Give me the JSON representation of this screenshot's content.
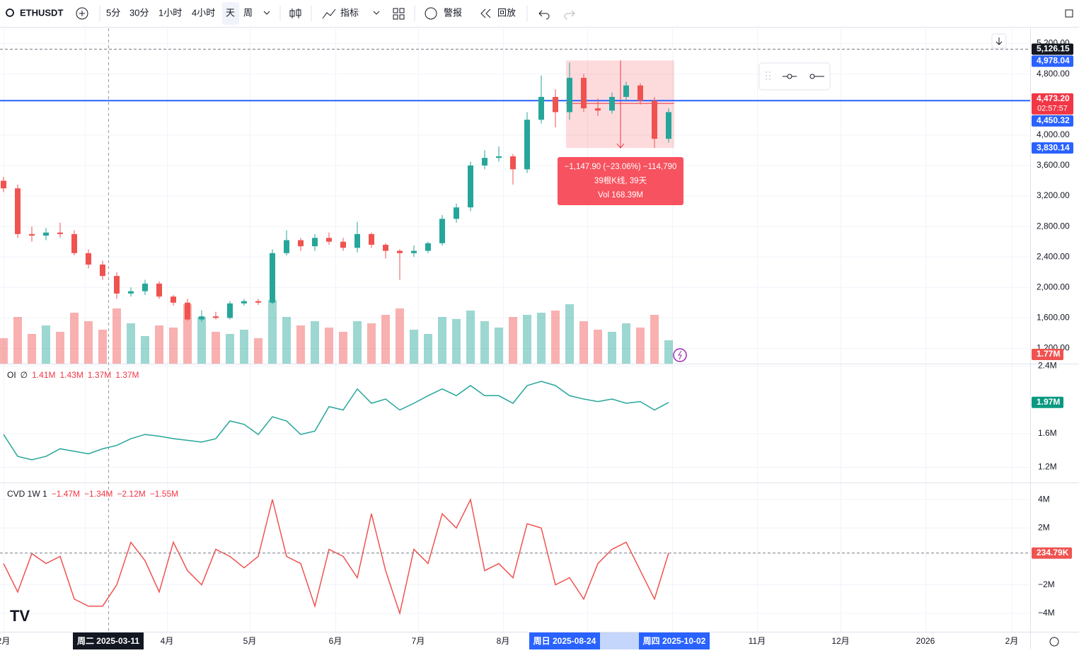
{
  "toolbar": {
    "symbol": "ETHUSDT",
    "intervals": [
      "5分",
      "30分",
      "1小时",
      "4小时",
      "天",
      "周"
    ],
    "active_interval": "天",
    "buttons": [
      "指标",
      "警报",
      "回放"
    ]
  },
  "chart_data": [
    {
      "type": "candlestick",
      "name": "price",
      "open": [
        3400,
        3300,
        2700,
        2680,
        2720,
        2700,
        2450,
        2300,
        2150,
        1920,
        1950,
        2050,
        1880,
        1800,
        1580,
        1620,
        1600,
        1790,
        1820,
        1800,
        2450,
        2620,
        2540,
        2650,
        2600,
        2520,
        2700,
        2560,
        2480,
        2450,
        2480,
        2580,
        2900,
        3050,
        3600,
        3700,
        3720,
        3550,
        4200,
        4500,
        4300,
        4750,
        4350,
        4320,
        4500,
        4650,
        4450,
        3950
      ],
      "high": [
        3450,
        3350,
        2800,
        2780,
        2850,
        2750,
        2500,
        2350,
        2200,
        2000,
        2100,
        2080,
        1900,
        1850,
        1700,
        1680,
        1820,
        1850,
        1850,
        2500,
        2750,
        2650,
        2700,
        2720,
        2650,
        2860,
        2720,
        2580,
        2500,
        2550,
        2600,
        2950,
        3100,
        3650,
        3800,
        3850,
        3750,
        4300,
        4780,
        4600,
        4950,
        4800,
        4480,
        4560,
        4700,
        4680,
        4500,
        4350
      ],
      "low": [
        3250,
        2650,
        2600,
        2620,
        2650,
        2420,
        2250,
        2100,
        1850,
        1880,
        1900,
        1850,
        1760,
        1560,
        1550,
        1580,
        1580,
        1760,
        1770,
        1780,
        2420,
        2480,
        2480,
        2560,
        2480,
        2460,
        2520,
        2380,
        2100,
        2400,
        2450,
        2550,
        2850,
        3000,
        3550,
        3650,
        3350,
        3500,
        4150,
        4100,
        4200,
        4300,
        4250,
        4280,
        4450,
        4400,
        3830,
        3900
      ],
      "close": [
        3300,
        2700,
        2680,
        2720,
        2700,
        2450,
        2300,
        2150,
        1920,
        1950,
        2050,
        1880,
        1800,
        1580,
        1620,
        1600,
        1790,
        1820,
        1800,
        2450,
        2620,
        2540,
        2650,
        2600,
        2520,
        2700,
        2560,
        2480,
        2450,
        2480,
        2580,
        2900,
        3050,
        3600,
        3700,
        3720,
        3550,
        4200,
        4500,
        4300,
        4750,
        4350,
        4320,
        4500,
        4650,
        4450,
        3950,
        4300
      ],
      "volume": [
        1.2,
        2.2,
        1.4,
        1.8,
        1.5,
        2.4,
        2.0,
        1.6,
        2.6,
        1.9,
        1.3,
        1.8,
        1.7,
        2.8,
        2.2,
        1.5,
        1.4,
        1.6,
        1.2,
        3.0,
        2.2,
        1.8,
        2.0,
        1.7,
        1.5,
        2.0,
        1.9,
        2.3,
        2.6,
        1.6,
        1.4,
        2.2,
        2.1,
        2.5,
        2.0,
        1.7,
        2.2,
        2.3,
        2.4,
        2.5,
        2.8,
        2.0,
        1.6,
        1.5,
        1.9,
        1.7,
        2.3,
        1.1
      ],
      "volume_label": "1.77M",
      "up_color": "#26a69a",
      "down_color": "#ef5350",
      "ylim": [
        1000,
        5400
      ],
      "yticks": [
        {
          "value": 1200,
          "label": "1,200.00"
        },
        {
          "value": 1600,
          "label": "1,600.00"
        },
        {
          "value": 2000,
          "label": "2,000.00"
        },
        {
          "value": 2400,
          "label": "2,400.00"
        },
        {
          "value": 2800,
          "label": "2,800.00"
        },
        {
          "value": 3200,
          "label": "3,200.00"
        },
        {
          "value": 3600,
          "label": "3,600.00"
        },
        {
          "value": 4000,
          "label": "4,000.00"
        },
        {
          "value": 4800,
          "label": "4,800.00"
        },
        {
          "value": 5200,
          "label": "5,200.00"
        }
      ],
      "price_labels": [
        {
          "value": 5126.15,
          "label": "5,126.15",
          "color": "#131722"
        },
        {
          "value": 4978.04,
          "label": "4,978.04",
          "color": "#2962ff"
        },
        {
          "value": 4473.2,
          "label": "4,473.20",
          "color": "#f23645"
        },
        {
          "value": 4450.32,
          "label": "4,450.32",
          "color": "#2962ff"
        },
        {
          "value": 3830.14,
          "label": "3,830.14",
          "color": "#2962ff"
        }
      ],
      "countdown": "02:57:57",
      "measure": {
        "lines": [
          "−1,147.90 (−23.06%) −114,790",
          "39根K线, 39天",
          "Vol 168.39M"
        ]
      }
    },
    {
      "type": "line",
      "name": "OI",
      "legend": [
        "OI",
        "∅",
        "1.41M",
        "1.43M",
        "1.37M",
        "1.37M"
      ],
      "values": [
        1.59,
        1.33,
        1.29,
        1.33,
        1.42,
        1.39,
        1.36,
        1.42,
        1.46,
        1.54,
        1.59,
        1.57,
        1.54,
        1.52,
        1.5,
        1.54,
        1.75,
        1.71,
        1.59,
        1.8,
        1.75,
        1.59,
        1.63,
        1.92,
        1.88,
        2.13,
        1.96,
        2.01,
        1.88,
        1.96,
        2.05,
        2.13,
        2.05,
        2.17,
        2.05,
        2.05,
        1.96,
        2.17,
        2.22,
        2.17,
        2.05,
        2.01,
        1.98,
        2.01,
        1.96,
        1.98,
        1.88,
        1.97
      ],
      "color": "#26a69a",
      "last_label": "1.97M",
      "ylim": [
        1.02,
        2.43
      ],
      "yticks": [
        {
          "value": 1.2,
          "label": "1.2M"
        },
        {
          "value": 1.6,
          "label": "1.6M"
        },
        {
          "value": 2.4,
          "label": "2.4M"
        }
      ]
    },
    {
      "type": "line",
      "name": "CVD",
      "legend": [
        "CVD 1W 1",
        "−1.47M",
        "−1.34M",
        "−2.12M",
        "−1.55M"
      ],
      "values": [
        -0.5,
        -2.5,
        0.2,
        -0.5,
        0,
        -3,
        -3.5,
        -3.5,
        -2,
        1,
        -0.3,
        -2.5,
        1,
        -1,
        -2,
        0.5,
        0,
        -0.8,
        0,
        4,
        0,
        -0.5,
        -3.5,
        0.5,
        0,
        -1.5,
        3,
        -1,
        -4,
        0.5,
        -0.5,
        3,
        2,
        4,
        -1,
        -0.5,
        -1.5,
        2.3,
        2,
        -2,
        -1.5,
        -3,
        -0.5,
        0.5,
        1,
        -1,
        -3,
        0.23479
      ],
      "color": "#ef5350",
      "last_label": "234.79K",
      "ylim": [
        -5.3,
        5.2
      ],
      "yticks": [
        {
          "value": 4,
          "label": "4M"
        },
        {
          "value": 2,
          "label": "2M"
        },
        {
          "value": -2,
          "label": "−2M"
        },
        {
          "value": -4,
          "label": "−4M"
        }
      ]
    }
  ],
  "x_axis": {
    "labels": [
      "2月",
      "4月",
      "5月",
      "6月",
      "7月",
      "8月",
      "11月",
      "12月",
      "2026",
      "2月"
    ],
    "crosshair": "周二 2025-03-11",
    "range": [
      "周日 2025-08-24",
      "周四 2025-10-02"
    ]
  }
}
